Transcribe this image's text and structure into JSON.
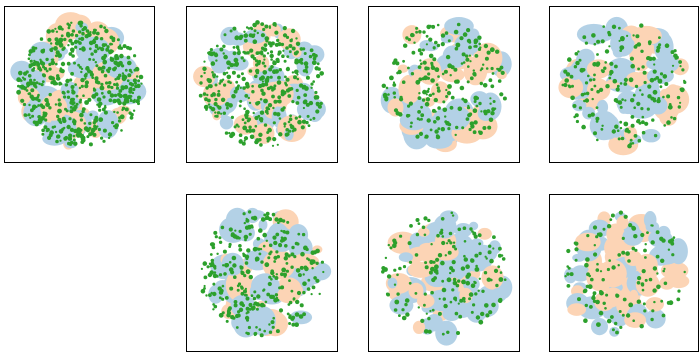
{
  "chart_data": [
    {
      "type": "scatter",
      "seed": 11,
      "series": [
        {
          "color": "#b3d1e6",
          "role": "class-a"
        },
        {
          "color": "#fcd4b5",
          "role": "class-b"
        },
        {
          "color": "#2ca02c",
          "role": "highlight"
        }
      ],
      "highlight_fraction": 0.55
    },
    {
      "type": "scatter",
      "seed": 23,
      "series": [
        {
          "color": "#b3d1e6",
          "role": "class-a"
        },
        {
          "color": "#fcd4b5",
          "role": "class-b"
        },
        {
          "color": "#2ca02c",
          "role": "highlight"
        }
      ],
      "highlight_fraction": 0.4
    },
    {
      "type": "scatter",
      "seed": 37,
      "series": [
        {
          "color": "#b3d1e6",
          "role": "class-a"
        },
        {
          "color": "#fcd4b5",
          "role": "class-b"
        },
        {
          "color": "#2ca02c",
          "role": "highlight"
        }
      ],
      "highlight_fraction": 0.22
    },
    {
      "type": "scatter",
      "seed": 41,
      "series": [
        {
          "color": "#b3d1e6",
          "role": "class-a"
        },
        {
          "color": "#fcd4b5",
          "role": "class-b"
        },
        {
          "color": "#2ca02c",
          "role": "highlight"
        }
      ],
      "highlight_fraction": 0.18
    },
    {
      "type": "scatter",
      "seed": 53,
      "series": [
        {
          "color": "#b3d1e6",
          "role": "class-a"
        },
        {
          "color": "#fcd4b5",
          "role": "class-b"
        },
        {
          "color": "#2ca02c",
          "role": "highlight"
        }
      ],
      "highlight_fraction": 0.3
    },
    {
      "type": "scatter",
      "seed": 67,
      "series": [
        {
          "color": "#b3d1e6",
          "role": "class-a"
        },
        {
          "color": "#fcd4b5",
          "role": "class-b"
        },
        {
          "color": "#2ca02c",
          "role": "highlight"
        }
      ],
      "highlight_fraction": 0.15
    },
    {
      "type": "scatter",
      "seed": 79,
      "series": [
        {
          "color": "#b3d1e6",
          "role": "class-a"
        },
        {
          "color": "#fcd4b5",
          "role": "class-b"
        },
        {
          "color": "#2ca02c",
          "role": "highlight"
        }
      ],
      "highlight_fraction": 0.1
    }
  ]
}
